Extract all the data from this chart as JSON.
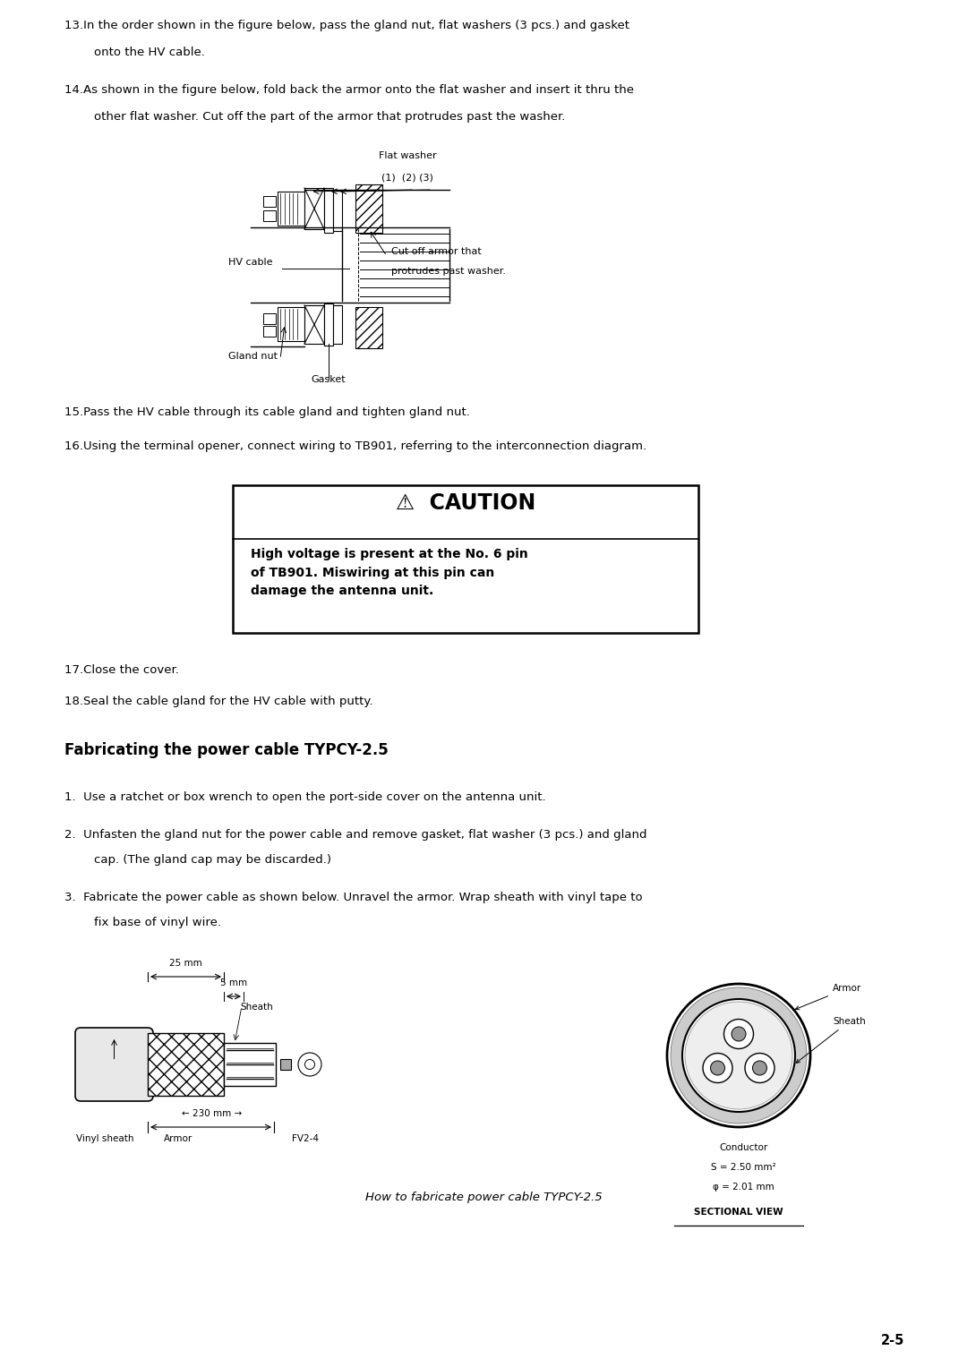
{
  "bg_color": "#ffffff",
  "text_color": "#000000",
  "page_number": "2-5",
  "item13_line1": "13.In the order shown in the figure below, pass the gland nut, flat washers (3 pcs.) and gasket",
  "item13_line2": "onto the HV cable.",
  "item14_line1": "14.As shown in the figure below, fold back the armor onto the flat washer and insert it thru the",
  "item14_line2": "other flat washer. Cut off the part of the armor that protrudes past the washer.",
  "label_flat_washer": "Flat washer",
  "label_123": "(1)  (2) (3)",
  "label_hv_cable": "HV cable",
  "label_gland_nut": "Gland nut",
  "label_gasket": "Gasket",
  "label_cut_off": "Cut off armor that",
  "label_cut_off2": "protrudes past washer.",
  "item15": "15.Pass the HV cable through its cable gland and tighten gland nut.",
  "item16": "16.Using the terminal opener, connect wiring to TB901, referring to the interconnection diagram.",
  "caution_title": "⚠  CAUTION",
  "caution_body": "High voltage is present at the No. 6 pin\nof TB901. Miswiring at this pin can\ndamage the antenna unit.",
  "item17": "17.Close the cover.",
  "item18": "18.Seal the cable gland for the HV cable with putty.",
  "section_title": "Fabricating the power cable TYPCY-2.5",
  "fab_item1": "1.  Use a ratchet or box wrench to open the port-side cover on the antenna unit.",
  "fab_item2_line1": "2.  Unfasten the gland nut for the power cable and remove gasket, flat washer (3 pcs.) and gland",
  "fab_item2_line2": "cap. (The gland cap may be discarded.)",
  "fab_item3_line1": "3.  Fabricate the power cable as shown below. Unravel the armor. Wrap sheath with vinyl tape to",
  "fab_item3_line2": "fix base of vinyl wire.",
  "lbl_25mm": "25 mm",
  "lbl_5mm": "5 mm",
  "lbl_sheath": "Sheath",
  "lbl_230mm": "230 mm",
  "lbl_vinyl_sheath": "Vinyl sheath",
  "lbl_armor": "Armor",
  "lbl_fv24": "FV2-4",
  "lbl_armor_r": "Armor",
  "lbl_sheath_r": "Sheath",
  "lbl_conductor": "Conductor",
  "lbl_s": "S = 2.50 mm²",
  "lbl_phi": "φ = 2.01 mm",
  "lbl_sectional": "SECTIONAL VIEW",
  "caption": "How to fabricate power cable TYPCY-2.5"
}
